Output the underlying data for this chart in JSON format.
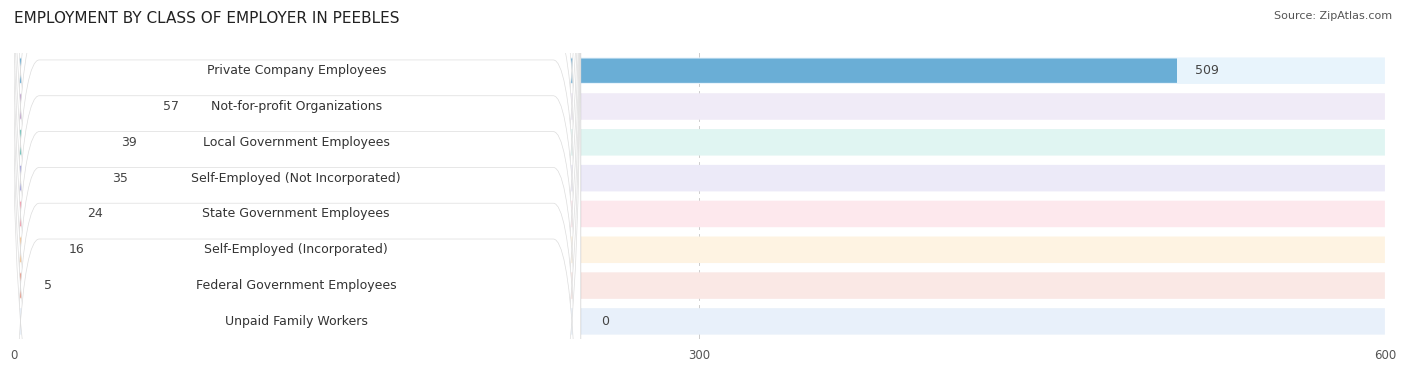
{
  "title": "EMPLOYMENT BY CLASS OF EMPLOYER IN PEEBLES",
  "source": "Source: ZipAtlas.com",
  "categories": [
    "Private Company Employees",
    "Not-for-profit Organizations",
    "Local Government Employees",
    "Self-Employed (Not Incorporated)",
    "State Government Employees",
    "Self-Employed (Incorporated)",
    "Federal Government Employees",
    "Unpaid Family Workers"
  ],
  "values": [
    509,
    57,
    39,
    35,
    24,
    16,
    5,
    0
  ],
  "bar_colors": [
    "#6aaed6",
    "#c5a9d0",
    "#70c4bc",
    "#a9a9e0",
    "#f4a0b0",
    "#f7c899",
    "#e8a090",
    "#a8c4e0"
  ],
  "bar_bg_colors": [
    "#e8f4fc",
    "#f0ebf7",
    "#e0f5f2",
    "#eceaf8",
    "#fde8ed",
    "#fef3e2",
    "#fae8e5",
    "#e8f0fa"
  ],
  "row_bg_color": "#f0f0f0",
  "white": "#ffffff",
  "xlim": [
    0,
    600
  ],
  "xticks": [
    0,
    300,
    600
  ],
  "background_color": "#ffffff",
  "title_fontsize": 11,
  "label_fontsize": 9,
  "value_fontsize": 9
}
